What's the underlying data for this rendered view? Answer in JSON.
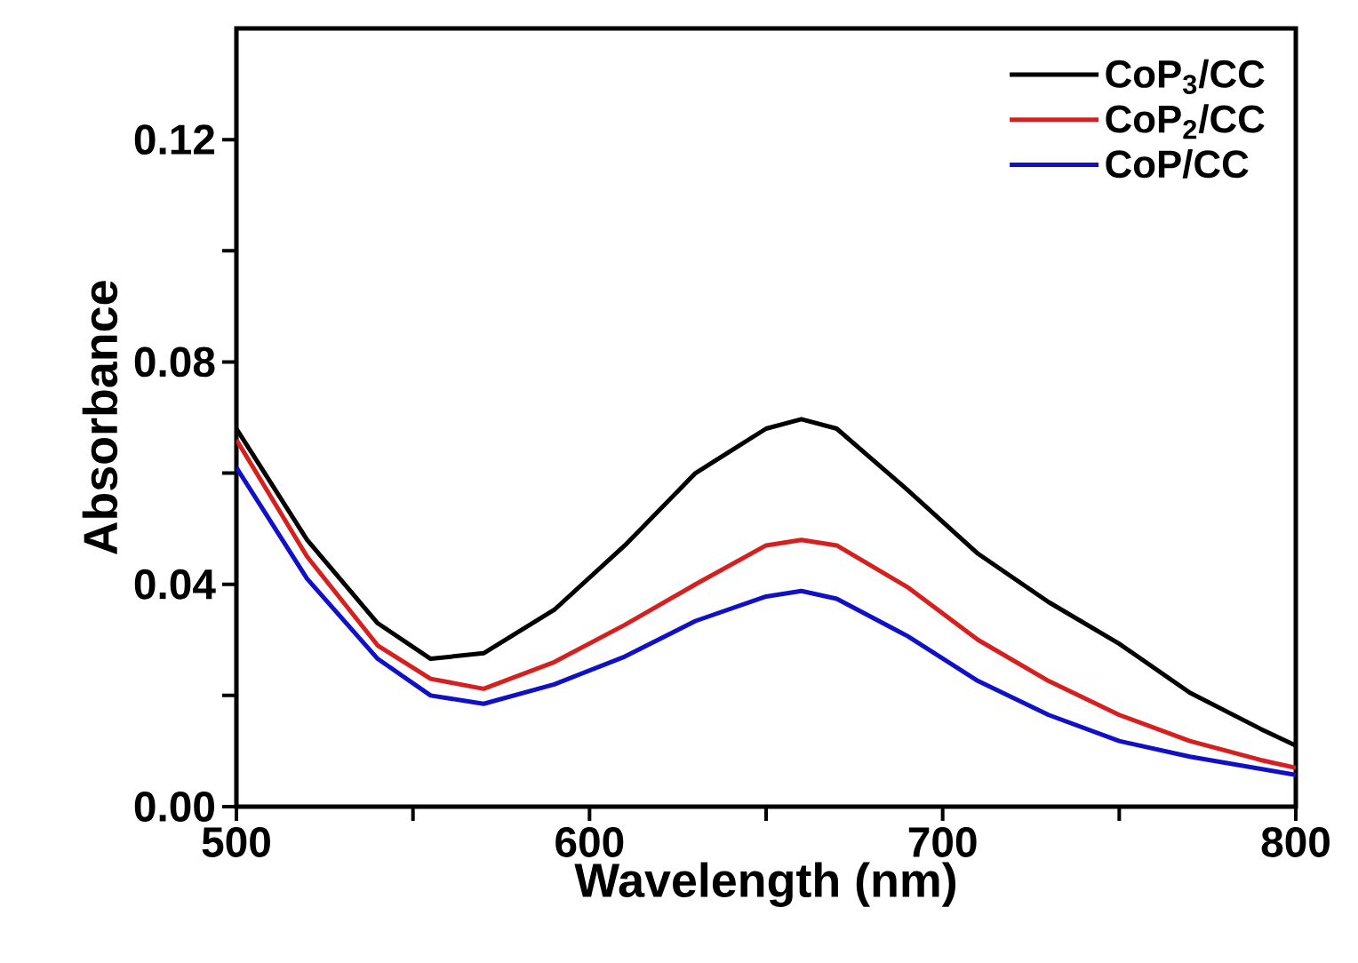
{
  "chart_data": {
    "type": "line",
    "xlabel": "Wavelength (nm)",
    "ylabel": "Absorbance",
    "x": [
      500,
      520,
      540,
      555,
      570,
      590,
      610,
      630,
      650,
      660,
      670,
      690,
      710,
      730,
      750,
      770,
      790,
      800
    ],
    "series": [
      {
        "name": "CoP$_{3}$/CC",
        "color": "#000000",
        "values": [
          0.068,
          0.048,
          0.033,
          0.0266,
          0.0276,
          0.0354,
          0.047,
          0.06,
          0.068,
          0.0697,
          0.068,
          0.057,
          0.0455,
          0.0368,
          0.0293,
          0.0205,
          0.014,
          0.011
        ]
      },
      {
        "name": "CoP$_{2}$/CC",
        "color": "#d62020",
        "values": [
          0.066,
          0.045,
          0.029,
          0.023,
          0.0212,
          0.026,
          0.0327,
          0.04,
          0.047,
          0.048,
          0.047,
          0.0395,
          0.03,
          0.0226,
          0.0165,
          0.0118,
          0.0084,
          0.007
        ]
      },
      {
        "name": "CoP/CC",
        "color": "#1010c8",
        "values": [
          0.061,
          0.041,
          0.0266,
          0.02,
          0.0185,
          0.022,
          0.027,
          0.0334,
          0.0378,
          0.0388,
          0.0374,
          0.0307,
          0.0226,
          0.0165,
          0.0118,
          0.009,
          0.0068,
          0.0057
        ]
      }
    ],
    "xlim": [
      500,
      800
    ],
    "xticks": [
      500,
      {
        "value": 550,
        "label": null
      },
      600,
      {
        "value": 650,
        "label": null
      },
      700,
      {
        "value": 750,
        "label": null
      },
      800
    ],
    "ylim": [
      0,
      0.14
    ],
    "yticks": [
      {
        "value": 0,
        "label": "0.00"
      },
      {
        "value": 0.02,
        "label": null
      },
      0.04,
      {
        "value": 0.06,
        "label": null
      },
      0.08,
      {
        "value": 0.1,
        "label": null
      },
      0.12
    ],
    "legend": "top right",
    "grid": false,
    "marker": "none",
    "line_style": "solid"
  }
}
